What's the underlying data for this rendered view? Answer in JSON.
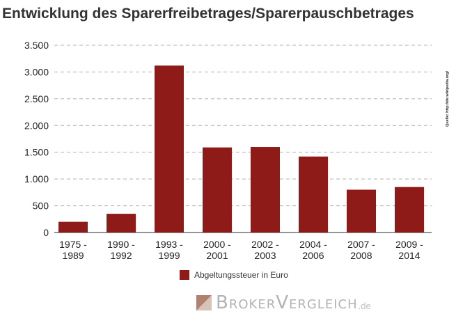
{
  "title": "Entwicklung des Sparerfreibetrages/Sparerpauschbetrages",
  "source": "Quelle: http://de.wikipedia.org/",
  "legend": {
    "label": "Abgeltungssteuer in Euro"
  },
  "watermark": {
    "brand": "BrokerVergleich",
    "tld": ".de"
  },
  "colors": {
    "bar": "#8e1b17",
    "grid": "#b0b0b0",
    "logo": "#b08070"
  },
  "chart_data": {
    "type": "bar",
    "title": "Entwicklung des Sparerfreibetrages/Sparerpauschbetrages",
    "categories": [
      [
        "1975 -",
        "1989"
      ],
      [
        "1990 -",
        "1992"
      ],
      [
        "1993 -",
        "1999"
      ],
      [
        "2000 -",
        "2001"
      ],
      [
        "2002 -",
        "2003"
      ],
      [
        "2004 -",
        "2006"
      ],
      [
        "2007 -",
        "2008"
      ],
      [
        "2009 -",
        "2014"
      ]
    ],
    "series": [
      {
        "name": "Abgeltungssteuer in Euro",
        "values": [
          200,
          350,
          3120,
          1590,
          1600,
          1420,
          800,
          850
        ]
      }
    ],
    "yticks": [
      0,
      500,
      1000,
      1500,
      2000,
      2500,
      3000,
      3500
    ],
    "ytick_labels": [
      "0",
      "500",
      "1.000",
      "1.500",
      "2.000",
      "2.500",
      "3.000",
      "3.500"
    ],
    "ylim": [
      0,
      3500
    ],
    "xlabel": "",
    "ylabel": "",
    "grid": "dashed horizontal",
    "legend_position": "bottom"
  }
}
